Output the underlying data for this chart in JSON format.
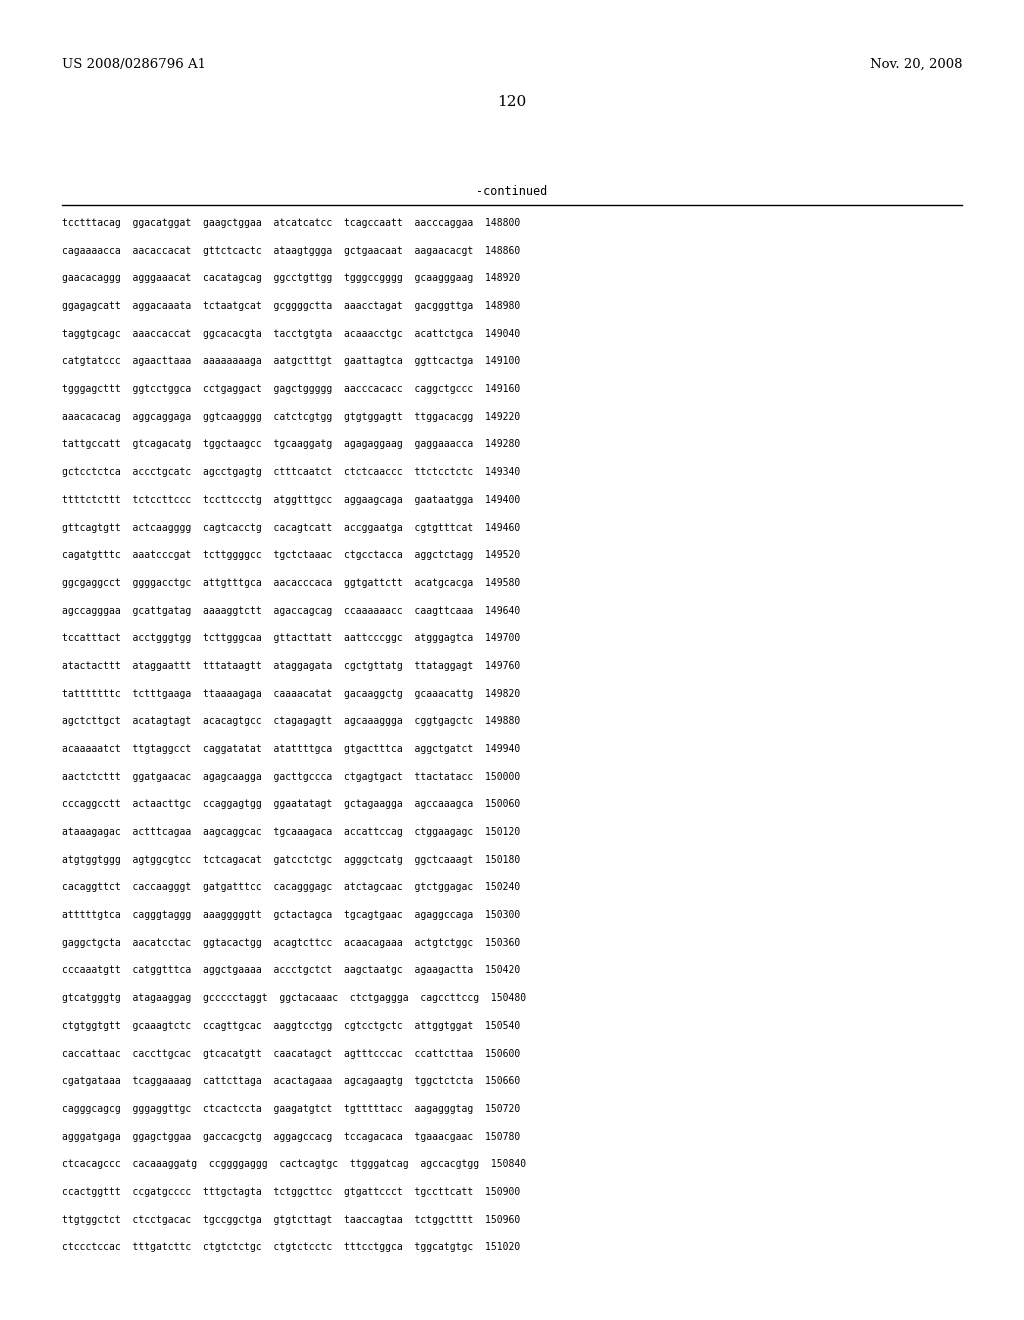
{
  "header_left": "US 2008/0286796 A1",
  "header_right": "Nov. 20, 2008",
  "page_number": "120",
  "continued_label": "-continued",
  "background_color": "#ffffff",
  "text_color": "#000000",
  "font_size_header": 9.5,
  "font_size_page": 11.0,
  "font_size_continued": 8.5,
  "font_size_body": 7.0,
  "sequence_lines": [
    "tcctttacag  ggacatggat  gaagctggaa  atcatcatcc  tcagccaatt  aacccaggaa  148800",
    "cagaaaacca  aacaccacat  gttctcactc  ataagtggga  gctgaacaat  aagaacacgt  148860",
    "gaacacaggg  agggaaacat  cacatagcag  ggcctgttgg  tgggccgggg  gcaagggaag  148920",
    "ggagagcatt  aggacaaata  tctaatgcat  gcggggctta  aaacctagat  gacgggttga  148980",
    "taggtgcagc  aaaccaccat  ggcacacgta  tacctgtgta  acaaacctgc  acattctgca  149040",
    "catgtatccc  agaacttaaa  aaaaaaaaga  aatgctttgt  gaattagtca  ggttcactga  149100",
    "tgggagcttt  ggtcctggca  cctgaggact  gagctggggg  aacccacacc  caggctgccc  149160",
    "aaacacacag  aggcaggaga  ggtcaagggg  catctcgtgg  gtgtggagtt  ttggacacgg  149220",
    "tattgccatt  gtcagacatg  tggctaagcc  tgcaaggatg  agagaggaag  gaggaaacca  149280",
    "gctcctctca  accctgcatc  agcctgagtg  ctttcaatct  ctctcaaccc  ttctcctctc  149340",
    "ttttctcttt  tctccttccc  tccttccctg  atggtttgcc  aggaagcaga  gaataatgga  149400",
    "gttcagtgtt  actcaagggg  cagtcacctg  cacagtcatt  accggaatga  cgtgtttcat  149460",
    "cagatgtttc  aaatcccgat  tcttggggcc  tgctctaaac  ctgcctacca  aggctctagg  149520",
    "ggcgaggcct  ggggacctgc  attgtttgca  aacacccaca  ggtgattctt  acatgcacga  149580",
    "agccagggaa  gcattgatag  aaaaggtctt  agaccagcag  ccaaaaaacc  caagttcaaa  149640",
    "tccatttact  acctgggtgg  tcttgggcaa  gttacttatt  aattcccggc  atgggagtca  149700",
    "atactacttt  ataggaattt  tttataagtt  ataggagata  cgctgttatg  ttataggagt  149760",
    "tatttttttc  tctttgaaga  ttaaaagaga  caaaacatat  gacaaggctg  gcaaacattg  149820",
    "agctcttgct  acatagtagt  acacagtgcc  ctagagagtt  agcaaaggga  cggtgagctc  149880",
    "acaaaaatct  ttgtaggcct  caggatatat  atattttgca  gtgactttca  aggctgatct  149940",
    "aactctcttt  ggatgaacac  agagcaagga  gacttgccca  ctgagtgact  ttactatacc  150000",
    "cccaggcctt  actaacttgc  ccaggagtgg  ggaatatagt  gctagaagga  agccaaagca  150060",
    "ataaagagac  actttcagaa  aagcaggcac  tgcaaagaca  accattccag  ctggaagagc  150120",
    "atgtggtggg  agtggcgtcc  tctcagacat  gatcctctgc  agggctcatg  ggctcaaagt  150180",
    "cacaggttct  caccaagggt  gatgatttcc  cacagggagc  atctagcaac  gtctggagac  150240",
    "atttttgtca  cagggtaggg  aaagggggtt  gctactagca  tgcagtgaac  agaggccaga  150300",
    "gaggctgcta  aacatcctac  ggtacactgg  acagtcttcc  acaacagaaa  actgtctggc  150360",
    "cccaaatgtt  catggtttca  aggctgaaaa  accctgctct  aagctaatgc  agaagactta  150420",
    "gtcatgggtg  atagaaggag  gccccctaggt  ggctacaaac  ctctgaggga  cagccttccg  150480",
    "ctgtggtgtt  gcaaagtctc  ccagttgcac  aaggtcctgg  cgtcctgctc  attggtggat  150540",
    "caccattaac  caccttgcac  gtcacatgtt  caacatagct  agtttcccac  ccattcttaa  150600",
    "cgatgataaa  tcaggaaaag  cattcttaga  acactagaaa  agcagaagtg  tggctctcta  150660",
    "cagggcagcg  gggaggttgc  ctcactccta  gaagatgtct  tgtttttacc  aagagggtag  150720",
    "agggatgaga  ggagctggaa  gaccacgctg  aggagccacg  tccagacaca  tgaaacgaac  150780",
    "ctcacagccc  cacaaaggatg  ccggggaggg  cactcagtgc  ttgggatcag  agccacgtgg  150840",
    "ccactggttt  ccgatgcccc  tttgctagta  tctggcttcc  gtgattccct  tgccttcatt  150900",
    "ttgtggctct  ctcctgacac  tgccggctga  gtgtcttagt  taaccagtaa  tctggctttt  150960",
    "ctccctccac  tttgatcttc  ctgtctctgc  ctgtctcctc  tttcctggca  tggcatgtgc  151020"
  ]
}
